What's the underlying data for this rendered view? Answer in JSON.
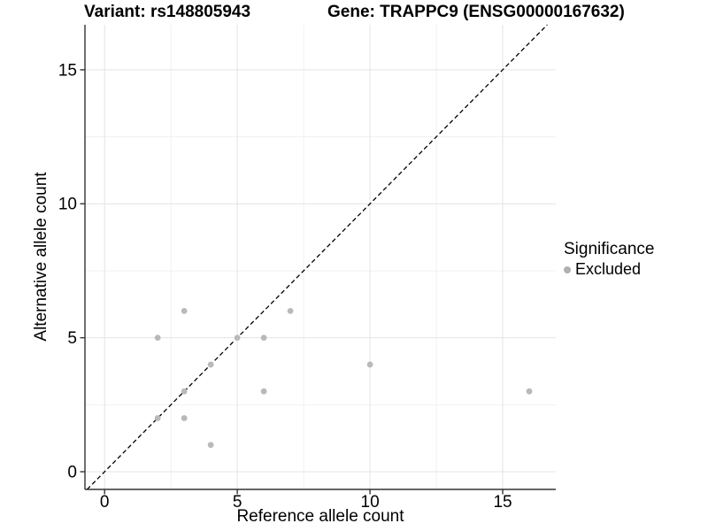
{
  "titles": {
    "variant": "Variant: rs148805943",
    "gene": "Gene: TRAPPC9 (ENSG00000167632)"
  },
  "chart_data": {
    "type": "scatter",
    "xlabel": "Reference allele count",
    "ylabel": "Alternative allele count",
    "xlim": [
      -0.74,
      17.0
    ],
    "ylim": [
      -0.66,
      16.68
    ],
    "x_ticks": [
      0,
      5,
      10,
      15
    ],
    "y_ticks": [
      0,
      5,
      10,
      15
    ],
    "x_minor_ticks": [
      2.5,
      7.5,
      12.5
    ],
    "y_minor_ticks": [
      2.5,
      7.5,
      12.5
    ],
    "grid": "major-and-minor",
    "identity_line": {
      "equation": "y = x",
      "style": "dashed",
      "color": "#000000"
    },
    "legend_position": "right",
    "series": [
      {
        "name": "Excluded",
        "color": "#b9b9b9",
        "points": [
          [
            2,
            2
          ],
          [
            2,
            5
          ],
          [
            3,
            2
          ],
          [
            3,
            3
          ],
          [
            3,
            6
          ],
          [
            4,
            1
          ],
          [
            4,
            4
          ],
          [
            5,
            5
          ],
          [
            6,
            3
          ],
          [
            6,
            5
          ],
          [
            7,
            6
          ],
          [
            10,
            4
          ],
          [
            16,
            3
          ]
        ]
      }
    ]
  },
  "legend": {
    "title": "Significance",
    "items": [
      {
        "label": "Excluded",
        "color": "#b0b0b0"
      }
    ]
  },
  "colors": {
    "background": "#ffffff",
    "grid_major": "#e4e4e4",
    "grid_minor": "#f1f1f1",
    "axis": "#333333",
    "tick_text": "#000000",
    "point": "#b9b9b9",
    "identity_line": "#000000"
  }
}
